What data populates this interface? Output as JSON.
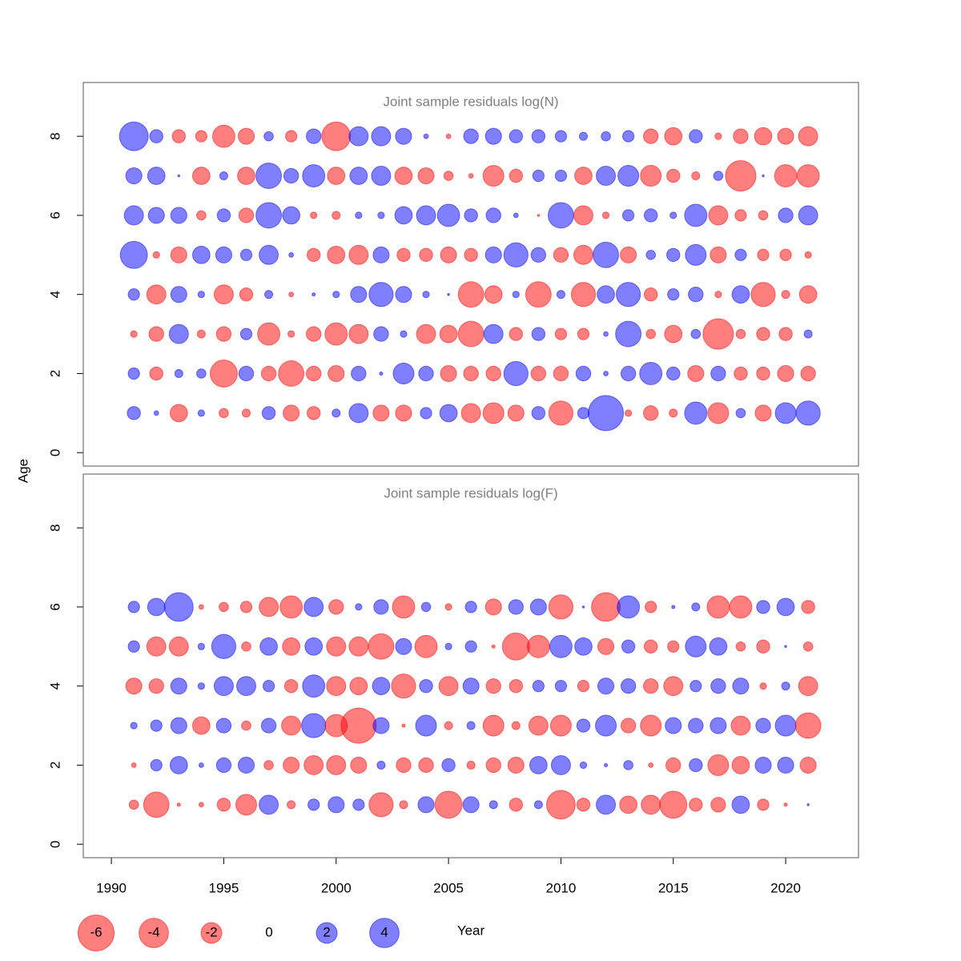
{
  "chart_data": [
    {
      "type": "bubble",
      "title": "Joint sample residuals log(N)",
      "x": [
        1991,
        1992,
        1993,
        1994,
        1995,
        1996,
        1997,
        1998,
        1999,
        2000,
        2001,
        2002,
        2003,
        2004,
        2005,
        2006,
        2007,
        2008,
        2009,
        2010,
        2011,
        2012,
        2013,
        2014,
        2015,
        2016,
        2017,
        2018,
        2019,
        2020,
        2021
      ],
      "ages": [
        1,
        2,
        3,
        4,
        5,
        6,
        7,
        8
      ],
      "values": [
        [
          0.8,
          0.1,
          -1.4,
          0.2,
          -0.4,
          -0.3,
          0.8,
          -1.2,
          -0.8,
          0.3,
          1.7,
          -1.2,
          -1.2,
          0.6,
          1.4,
          -1.7,
          -2.0,
          -1.2,
          0.8,
          -2.7,
          0.6,
          5.7,
          -0.2,
          -1.0,
          -0.3,
          2.3,
          -2.0,
          0.4,
          -1.2,
          2.0,
          2.7
        ],
        [
          0.6,
          -0.8,
          0.3,
          0.4,
          -3.4,
          1.0,
          -1.0,
          -3.0,
          -1.0,
          -1.2,
          1.0,
          0.05,
          2.0,
          1.0,
          -1.2,
          -1.0,
          -1.0,
          2.7,
          -1.0,
          -1.0,
          1.0,
          0.1,
          1.0,
          2.3,
          0.8,
          -1.2,
          1.0,
          -0.8,
          -0.8,
          -1.2,
          -1.0
        ],
        [
          -0.2,
          -1.0,
          1.7,
          -0.3,
          -1.0,
          0.6,
          -2.3,
          -0.2,
          -1.0,
          -2.3,
          -1.7,
          1.0,
          0.2,
          -1.7,
          -1.4,
          -3.0,
          1.7,
          -0.8,
          0.8,
          -0.6,
          -0.6,
          0.1,
          3.0,
          -0.4,
          -1.4,
          0.4,
          -4.3,
          -0.4,
          -0.8,
          -0.8,
          0.3
        ],
        [
          0.6,
          -1.7,
          1.2,
          0.2,
          -1.7,
          -0.8,
          0.3,
          -0.1,
          0.05,
          0.2,
          1.2,
          2.7,
          1.2,
          0.2,
          0.02,
          -3.0,
          -1.4,
          0.2,
          -3.0,
          0.3,
          -2.7,
          1.4,
          2.7,
          -0.8,
          0.6,
          1.0,
          -0.2,
          1.4,
          -2.7,
          -0.3,
          -1.4
        ],
        [
          3.4,
          -0.2,
          -1.2,
          1.4,
          1.2,
          0.6,
          1.7,
          0.1,
          -0.8,
          -1.4,
          -1.7,
          1.2,
          -0.8,
          -0.8,
          -1.2,
          -0.8,
          1.2,
          2.7,
          1.0,
          -1.0,
          -1.7,
          3.0,
          -1.2,
          0.4,
          0.8,
          2.0,
          -1.2,
          0.6,
          -0.6,
          -0.6,
          -0.2
        ],
        [
          1.7,
          1.2,
          1.2,
          -0.4,
          0.8,
          -1.0,
          3.0,
          1.4,
          -0.2,
          -0.3,
          0.2,
          0.2,
          1.4,
          1.7,
          2.3,
          0.8,
          1.0,
          0.1,
          -0.02,
          3.0,
          -1.7,
          -0.2,
          0.6,
          0.8,
          0.2,
          2.3,
          -1.7,
          -0.6,
          -0.4,
          1.0,
          1.7
        ],
        [
          1.2,
          1.4,
          0.02,
          -1.4,
          0.3,
          -1.4,
          3.0,
          1.0,
          2.3,
          -1.4,
          1.4,
          1.7,
          -1.4,
          -1.2,
          -0.4,
          -0.1,
          -2.0,
          -0.8,
          0.6,
          0.6,
          -1.4,
          1.7,
          2.0,
          -2.0,
          -0.8,
          -0.3,
          0.4,
          -4.3,
          0.02,
          -2.3,
          -2.3
        ],
        [
          3.8,
          0.8,
          -0.8,
          -0.6,
          -2.3,
          -1.2,
          0.4,
          -0.6,
          1.0,
          -3.8,
          1.7,
          1.7,
          1.2,
          0.1,
          -0.1,
          1.0,
          1.2,
          0.8,
          0.8,
          0.6,
          0.3,
          0.4,
          0.6,
          -1.0,
          -1.4,
          0.8,
          -0.2,
          -1.0,
          -1.4,
          -1.2,
          -1.7
        ]
      ],
      "xlim": [
        1988.75,
        2023.24
      ],
      "ylim": [
        -0.34,
        9.36
      ],
      "yticks": [
        0,
        2,
        4,
        6,
        8
      ]
    },
    {
      "type": "bubble",
      "title": "Joint sample residuals log(F)",
      "x": [
        1991,
        1992,
        1993,
        1994,
        1995,
        1996,
        1997,
        1998,
        1999,
        2000,
        2001,
        2002,
        2003,
        2004,
        2005,
        2006,
        2007,
        2008,
        2009,
        2010,
        2011,
        2012,
        2013,
        2014,
        2015,
        2016,
        2017,
        2018,
        2019,
        2020,
        2021
      ],
      "ages": [
        1,
        2,
        3,
        4,
        5,
        6
      ],
      "values": [
        [
          -0.4,
          -3.0,
          -0.05,
          -0.1,
          -0.8,
          -2.0,
          1.7,
          -0.3,
          0.6,
          1.2,
          0.6,
          -2.7,
          -0.3,
          1.2,
          -3.4,
          1.2,
          0.3,
          -0.8,
          0.3,
          -3.8,
          -0.8,
          1.7,
          -1.4,
          -1.7,
          -3.4,
          -0.8,
          -1.0,
          1.4,
          -0.6,
          -0.05,
          0.02
        ],
        [
          -0.1,
          0.6,
          1.4,
          0.1,
          1.0,
          1.2,
          -0.4,
          -1.2,
          -1.7,
          -1.7,
          -1.2,
          0.3,
          -1.0,
          -1.0,
          0.8,
          -0.3,
          -1.0,
          -1.2,
          1.4,
          1.7,
          0.2,
          0.05,
          0.4,
          -0.1,
          -1.0,
          0.8,
          -2.0,
          -1.4,
          1.2,
          1.2,
          -1.2
        ],
        [
          0.2,
          0.6,
          1.2,
          -1.4,
          1.0,
          -0.4,
          1.0,
          -1.7,
          2.7,
          -2.3,
          -5.7,
          1.2,
          -0.05,
          2.0,
          -0.3,
          0.3,
          -2.0,
          -0.3,
          -1.7,
          -2.0,
          0.8,
          2.0,
          -1.0,
          -2.0,
          1.2,
          1.0,
          1.2,
          -1.7,
          1.0,
          2.0,
          -3.0
        ],
        [
          -1.2,
          -1.0,
          1.2,
          0.2,
          1.7,
          1.7,
          0.6,
          -0.8,
          2.3,
          -1.7,
          -1.4,
          1.4,
          -2.7,
          0.8,
          -1.7,
          1.2,
          -1.0,
          -0.8,
          0.6,
          0.6,
          -0.6,
          1.2,
          1.0,
          -1.0,
          -1.7,
          0.6,
          1.0,
          1.2,
          -0.2,
          0.3,
          -1.7
        ],
        [
          0.6,
          -1.7,
          -1.7,
          0.2,
          2.7,
          -0.4,
          1.4,
          -1.4,
          1.4,
          -1.7,
          -1.7,
          -3.0,
          1.2,
          -2.3,
          0.2,
          0.6,
          -0.05,
          -3.4,
          -2.3,
          2.3,
          1.4,
          -1.2,
          0.8,
          -0.8,
          -0.6,
          2.0,
          1.4,
          -0.4,
          -0.8,
          0.02,
          -0.4
        ],
        [
          0.6,
          1.4,
          3.8,
          -0.1,
          -0.4,
          -0.6,
          -1.7,
          -2.3,
          1.7,
          -1.0,
          0.2,
          1.0,
          -2.3,
          0.4,
          -0.2,
          0.6,
          -1.2,
          1.0,
          1.2,
          -2.7,
          0.02,
          -3.8,
          2.3,
          -0.6,
          0.05,
          0.3,
          -2.3,
          -2.3,
          0.8,
          1.4,
          -0.8
        ]
      ],
      "xlim": [
        1988.75,
        2023.24
      ],
      "ylim": [
        -0.34,
        9.36
      ],
      "yticks": [
        0,
        2,
        4,
        6,
        8
      ],
      "xticks": [
        1990,
        1995,
        2000,
        2005,
        2010,
        2015,
        2020
      ]
    }
  ],
  "xlabel": "Year",
  "ylabel": "Age",
  "legend": {
    "values": [
      -6,
      -4,
      -2,
      0,
      2,
      4
    ]
  },
  "colors": {
    "positive": "#0000ff80",
    "negative": "#ff000080"
  }
}
